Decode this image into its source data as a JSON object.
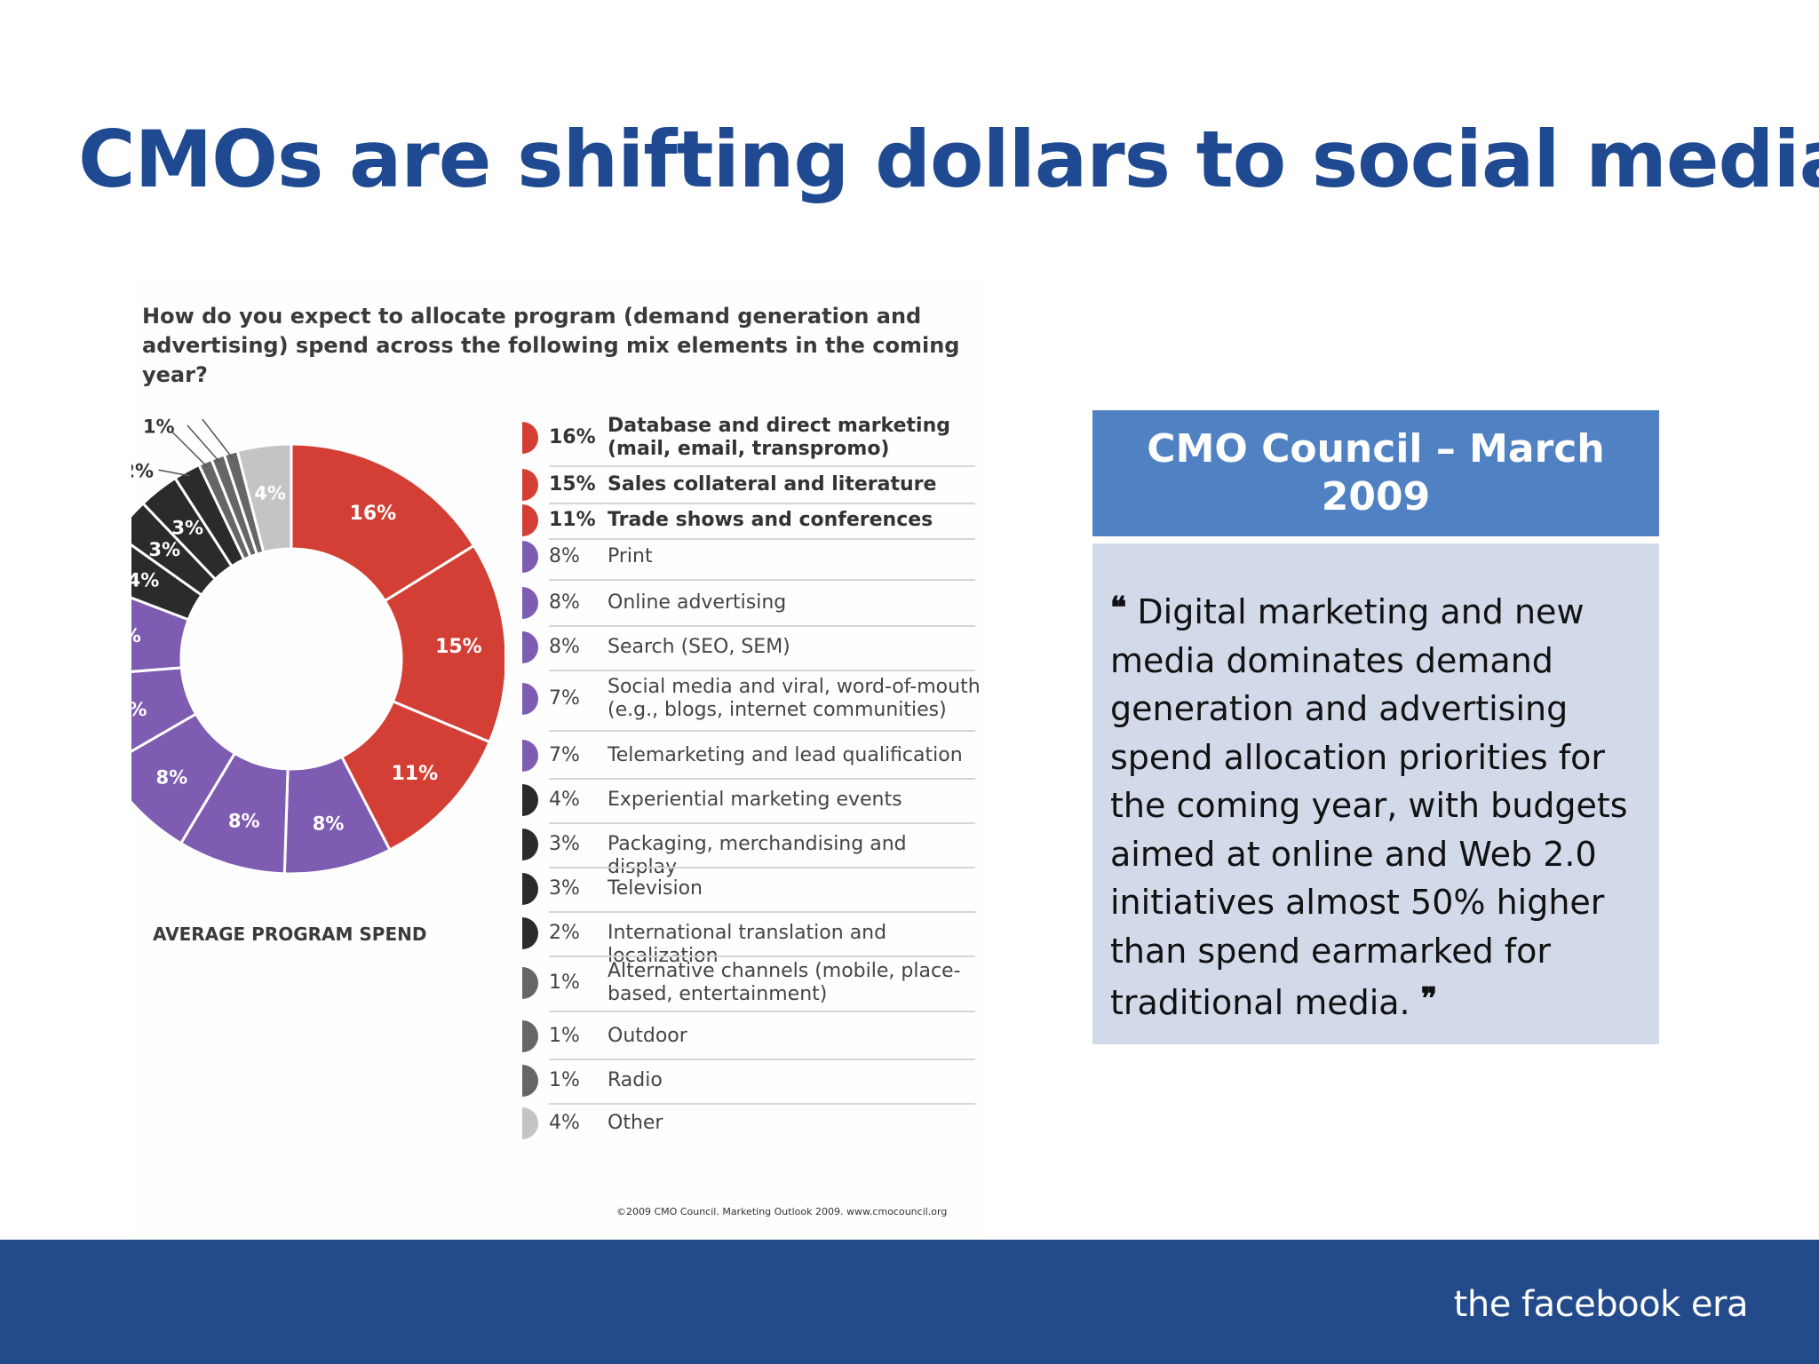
{
  "slide": {
    "title": "CMOs are shifting dollars to social media",
    "footer_brand": "the facebook era"
  },
  "figure": {
    "question": "How do you expect to allocate program (demand generation and advertising) spend across the following mix elements in the coming year?",
    "donut_caption": "AVERAGE PROGRAM SPEND",
    "source": "©2009 CMO Council. Marketing Outlook 2009. www.cmocouncil.org"
  },
  "callout": {
    "heading": "CMO Council – March 2009",
    "open_quote": "❝",
    "close_quote": "❞",
    "quote": "Digital marketing and new media dominates demand generation and advertising spend allocation priorities for the coming year, with budgets aimed at online and Web 2.0 initiatives almost 50% higher than spend earmarked for traditional media."
  },
  "chart_data": {
    "type": "pie",
    "title": "How do you expect to allocate program (demand generation and advertising) spend across the following mix elements in the coming year?",
    "categories": [
      "Database and direct marketing (mail, email, transpromo)",
      "Sales collateral and literature",
      "Trade shows and conferences",
      "Print",
      "Online advertising",
      "Search (SEO, SEM)",
      "Social media and viral, word-of-mouth (e.g., blogs, internet communities)",
      "Telemarketing and lead qualification",
      "Experiential marketing events",
      "Packaging, merchandising and display",
      "Television",
      "International translation and localization",
      "Alternative channels (mobile, place-based, entertainment)",
      "Outdoor",
      "Radio",
      "Other"
    ],
    "values": [
      16,
      15,
      11,
      8,
      8,
      8,
      7,
      7,
      4,
      3,
      3,
      2,
      1,
      1,
      1,
      4
    ],
    "labels": [
      "16%",
      "15%",
      "11%",
      "8%",
      "8%",
      "8%",
      "7%",
      "7%",
      "4%",
      "3%",
      "3%",
      "2%",
      "1%",
      "1%",
      "1%",
      "4%"
    ],
    "colors": [
      "#d33f34",
      "#d33f34",
      "#d33f34",
      "#7d5cb1",
      "#7d5cb1",
      "#7d5cb1",
      "#7d5cb1",
      "#7d5cb1",
      "#2b2b2b",
      "#2b2b2b",
      "#2b2b2b",
      "#2b2b2b",
      "#666666",
      "#666666",
      "#666666",
      "#c4c4c4"
    ],
    "label_colors": [
      "#ffffff",
      "#ffffff",
      "#ffffff",
      "#ffffff",
      "#ffffff",
      "#ffffff",
      "#ffffff",
      "#ffffff",
      "#ffffff",
      "#ffffff",
      "#ffffff",
      "#333333",
      "#333333",
      "#333333",
      "#333333",
      "#ffffff"
    ],
    "bold_legend": [
      true,
      true,
      true,
      false,
      false,
      false,
      false,
      false,
      false,
      false,
      false,
      false,
      false,
      false,
      false,
      false
    ],
    "legend_placement": "right",
    "hole": true
  }
}
